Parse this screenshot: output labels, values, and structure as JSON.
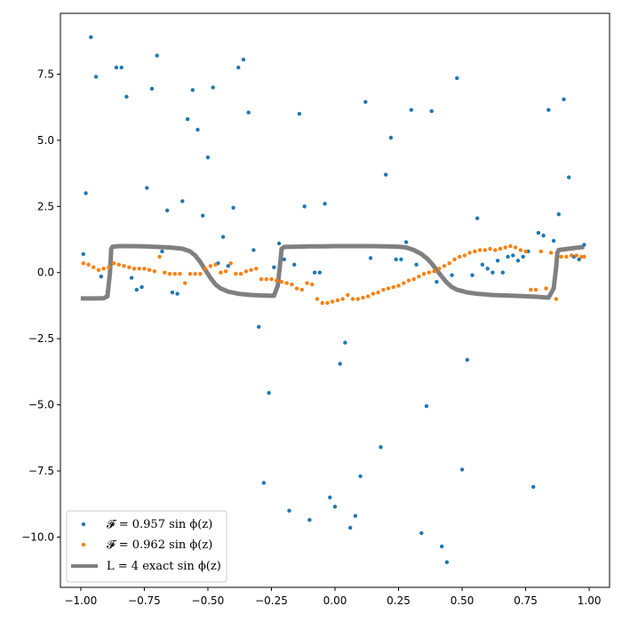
{
  "chart_data": {
    "type": "scatter",
    "title": "",
    "xlabel": "",
    "ylabel": "",
    "xlim": [
      -1.08,
      1.08
    ],
    "ylim": [
      -11.9,
      9.8
    ],
    "grid": false,
    "legend_position": "bottom-left",
    "x_ticks": [
      -1.0,
      -0.75,
      -0.5,
      -0.25,
      0.0,
      0.25,
      0.5,
      0.75,
      1.0
    ],
    "x_tick_labels": [
      "−1.00",
      "−0.75",
      "−0.50",
      "−0.25",
      "0.00",
      "0.25",
      "0.50",
      "0.75",
      "1.00"
    ],
    "y_ticks": [
      7.5,
      5.0,
      2.5,
      0.0,
      -2.5,
      -5.0,
      -7.5,
      -10.0
    ],
    "y_tick_labels": [
      "7.5",
      "5.0",
      "2.5",
      "0.0",
      "−2.5",
      "−5.0",
      "−7.5",
      "−10.0"
    ],
    "series": [
      {
        "name": "𝓕 = 0.957 sin ϕ(z)",
        "kind": "scatter",
        "color": "#1f77b4",
        "points": [
          [
            -0.99,
            0.7
          ],
          [
            -0.98,
            3.0
          ],
          [
            -0.96,
            8.9
          ],
          [
            -0.94,
            7.4
          ],
          [
            -0.92,
            -0.15
          ],
          [
            -0.86,
            7.75
          ],
          [
            -0.84,
            7.75
          ],
          [
            -0.82,
            6.65
          ],
          [
            -0.8,
            -0.2
          ],
          [
            -0.78,
            -0.65
          ],
          [
            -0.76,
            -0.55
          ],
          [
            -0.74,
            3.2
          ],
          [
            -0.72,
            6.95
          ],
          [
            -0.7,
            8.2
          ],
          [
            -0.68,
            0.8
          ],
          [
            -0.66,
            2.35
          ],
          [
            -0.64,
            -0.75
          ],
          [
            -0.62,
            -0.8
          ],
          [
            -0.6,
            2.7
          ],
          [
            -0.58,
            5.8
          ],
          [
            -0.56,
            6.9
          ],
          [
            -0.54,
            5.4
          ],
          [
            -0.52,
            2.15
          ],
          [
            -0.5,
            4.35
          ],
          [
            -0.48,
            7.0
          ],
          [
            -0.46,
            0.35
          ],
          [
            -0.44,
            1.35
          ],
          [
            -0.42,
            0.25
          ],
          [
            -0.4,
            2.45
          ],
          [
            -0.38,
            7.75
          ],
          [
            -0.36,
            8.05
          ],
          [
            -0.34,
            6.05
          ],
          [
            -0.32,
            0.85
          ],
          [
            -0.3,
            -2.05
          ],
          [
            -0.28,
            -7.95
          ],
          [
            -0.26,
            -4.55
          ],
          [
            -0.24,
            0.2
          ],
          [
            -0.22,
            1.1
          ],
          [
            -0.2,
            0.5
          ],
          [
            -0.18,
            -9.0
          ],
          [
            -0.16,
            0.3
          ],
          [
            -0.14,
            6.0
          ],
          [
            -0.12,
            2.5
          ],
          [
            -0.1,
            -9.35
          ],
          [
            -0.08,
            0.0
          ],
          [
            -0.06,
            0.0
          ],
          [
            -0.04,
            2.6
          ],
          [
            -0.02,
            -8.5
          ],
          [
            0.0,
            -8.85
          ],
          [
            0.02,
            -3.45
          ],
          [
            0.04,
            -2.65
          ],
          [
            0.06,
            -9.65
          ],
          [
            0.08,
            -9.2
          ],
          [
            0.1,
            -7.7
          ],
          [
            0.12,
            6.45
          ],
          [
            0.14,
            0.55
          ],
          [
            0.18,
            -6.6
          ],
          [
            0.2,
            3.7
          ],
          [
            0.22,
            5.1
          ],
          [
            0.24,
            0.5
          ],
          [
            0.26,
            0.5
          ],
          [
            0.28,
            1.15
          ],
          [
            0.3,
            6.15
          ],
          [
            0.32,
            0.3
          ],
          [
            0.34,
            -9.85
          ],
          [
            0.36,
            -5.05
          ],
          [
            0.38,
            6.1
          ],
          [
            0.4,
            -0.35
          ],
          [
            0.42,
            -10.35
          ],
          [
            0.44,
            -10.95
          ],
          [
            0.46,
            -0.1
          ],
          [
            0.48,
            7.35
          ],
          [
            0.5,
            -7.45
          ],
          [
            0.52,
            -3.3
          ],
          [
            0.54,
            -0.1
          ],
          [
            0.56,
            2.05
          ],
          [
            0.58,
            0.3
          ],
          [
            0.6,
            0.15
          ],
          [
            0.62,
            0.0
          ],
          [
            0.64,
            0.45
          ],
          [
            0.66,
            0.0
          ],
          [
            0.68,
            0.6
          ],
          [
            0.7,
            0.65
          ],
          [
            0.72,
            0.45
          ],
          [
            0.74,
            0.6
          ],
          [
            0.76,
            0.8
          ],
          [
            0.78,
            -8.1
          ],
          [
            0.8,
            1.5
          ],
          [
            0.82,
            1.4
          ],
          [
            0.84,
            6.15
          ],
          [
            0.86,
            1.2
          ],
          [
            0.88,
            2.2
          ],
          [
            0.9,
            6.55
          ],
          [
            0.92,
            3.6
          ],
          [
            0.94,
            0.6
          ],
          [
            0.96,
            0.5
          ],
          [
            0.98,
            1.05
          ]
        ]
      },
      {
        "name": "𝓕 = 0.962 sin ϕ(z)",
        "kind": "scatter",
        "color": "#ff7f0e",
        "points": [
          [
            -0.99,
            0.35
          ],
          [
            -0.97,
            0.3
          ],
          [
            -0.95,
            0.2
          ],
          [
            -0.93,
            0.1
          ],
          [
            -0.91,
            0.15
          ],
          [
            -0.89,
            0.2
          ],
          [
            -0.87,
            0.35
          ],
          [
            -0.85,
            0.3
          ],
          [
            -0.83,
            0.25
          ],
          [
            -0.81,
            0.2
          ],
          [
            -0.79,
            0.15
          ],
          [
            -0.77,
            0.15
          ],
          [
            -0.75,
            0.15
          ],
          [
            -0.73,
            0.1
          ],
          [
            -0.71,
            0.05
          ],
          [
            -0.69,
            0.6
          ],
          [
            -0.67,
            0.0
          ],
          [
            -0.65,
            -0.05
          ],
          [
            -0.63,
            -0.05
          ],
          [
            -0.61,
            -0.05
          ],
          [
            -0.59,
            -0.4
          ],
          [
            -0.57,
            -0.05
          ],
          [
            -0.55,
            -0.05
          ],
          [
            -0.53,
            -0.05
          ],
          [
            -0.51,
            0.15
          ],
          [
            -0.49,
            0.25
          ],
          [
            -0.47,
            0.3
          ],
          [
            -0.45,
            0.0
          ],
          [
            -0.43,
            0.05
          ],
          [
            -0.41,
            0.35
          ],
          [
            -0.39,
            -0.05
          ],
          [
            -0.37,
            -0.05
          ],
          [
            -0.35,
            0.05
          ],
          [
            -0.33,
            0.1
          ],
          [
            -0.31,
            0.15
          ],
          [
            -0.29,
            -0.25
          ],
          [
            -0.27,
            -0.25
          ],
          [
            -0.25,
            -0.25
          ],
          [
            -0.23,
            -0.3
          ],
          [
            -0.21,
            -0.35
          ],
          [
            -0.19,
            -0.4
          ],
          [
            -0.17,
            -0.45
          ],
          [
            -0.15,
            -0.6
          ],
          [
            -0.13,
            -0.65
          ],
          [
            -0.11,
            -0.4
          ],
          [
            -0.09,
            -0.45
          ],
          [
            -0.07,
            -1.0
          ],
          [
            -0.05,
            -1.15
          ],
          [
            -0.03,
            -1.15
          ],
          [
            -0.01,
            -1.1
          ],
          [
            0.01,
            -1.05
          ],
          [
            0.03,
            -1.0
          ],
          [
            0.05,
            -0.85
          ],
          [
            0.07,
            -1.0
          ],
          [
            0.09,
            -1.0
          ],
          [
            0.11,
            -0.95
          ],
          [
            0.13,
            -0.9
          ],
          [
            0.15,
            -0.8
          ],
          [
            0.17,
            -0.75
          ],
          [
            0.19,
            -0.65
          ],
          [
            0.21,
            -0.6
          ],
          [
            0.23,
            -0.55
          ],
          [
            0.25,
            -0.5
          ],
          [
            0.27,
            -0.4
          ],
          [
            0.29,
            -0.3
          ],
          [
            0.31,
            -0.25
          ],
          [
            0.33,
            -0.15
          ],
          [
            0.35,
            -0.05
          ],
          [
            0.37,
            0.0
          ],
          [
            0.39,
            0.05
          ],
          [
            0.41,
            0.15
          ],
          [
            0.43,
            0.25
          ],
          [
            0.45,
            0.35
          ],
          [
            0.47,
            0.5
          ],
          [
            0.49,
            0.6
          ],
          [
            0.51,
            0.65
          ],
          [
            0.53,
            0.75
          ],
          [
            0.55,
            0.8
          ],
          [
            0.57,
            0.85
          ],
          [
            0.59,
            0.85
          ],
          [
            0.61,
            0.9
          ],
          [
            0.63,
            0.85
          ],
          [
            0.65,
            0.9
          ],
          [
            0.67,
            0.95
          ],
          [
            0.69,
            1.0
          ],
          [
            0.71,
            0.95
          ],
          [
            0.73,
            0.85
          ],
          [
            0.75,
            0.8
          ],
          [
            0.77,
            -0.65
          ],
          [
            0.79,
            -0.65
          ],
          [
            0.81,
            0.8
          ],
          [
            0.83,
            -0.6
          ],
          [
            0.85,
            0.75
          ],
          [
            0.87,
            -1.0
          ],
          [
            0.89,
            0.6
          ],
          [
            0.91,
            0.6
          ],
          [
            0.93,
            0.65
          ],
          [
            0.95,
            0.65
          ],
          [
            0.97,
            0.6
          ],
          [
            0.98,
            0.6
          ]
        ]
      },
      {
        "name": "L = 4 exact sin ϕ(z)",
        "kind": "line",
        "color": "#808080",
        "points": [
          [
            -1.0,
            -0.98
          ],
          [
            -0.95,
            -0.98
          ],
          [
            -0.91,
            -0.97
          ],
          [
            -0.895,
            -0.9
          ],
          [
            -0.885,
            0.0
          ],
          [
            -0.88,
            0.9
          ],
          [
            -0.875,
            0.98
          ],
          [
            -0.85,
            1.0
          ],
          [
            -0.8,
            1.0
          ],
          [
            -0.75,
            0.99
          ],
          [
            -0.7,
            0.97
          ],
          [
            -0.65,
            0.95
          ],
          [
            -0.6,
            0.9
          ],
          [
            -0.57,
            0.8
          ],
          [
            -0.55,
            0.65
          ],
          [
            -0.53,
            0.4
          ],
          [
            -0.51,
            0.1
          ],
          [
            -0.49,
            -0.2
          ],
          [
            -0.47,
            -0.45
          ],
          [
            -0.45,
            -0.6
          ],
          [
            -0.42,
            -0.72
          ],
          [
            -0.38,
            -0.8
          ],
          [
            -0.33,
            -0.85
          ],
          [
            -0.28,
            -0.87
          ],
          [
            -0.24,
            -0.88
          ],
          [
            -0.225,
            -0.5
          ],
          [
            -0.215,
            0.4
          ],
          [
            -0.21,
            0.9
          ],
          [
            -0.2,
            0.97
          ],
          [
            -0.15,
            0.98
          ],
          [
            -0.1,
            0.99
          ],
          [
            -0.05,
            0.99
          ],
          [
            0.0,
            1.0
          ],
          [
            0.05,
            1.0
          ],
          [
            0.1,
            1.0
          ],
          [
            0.15,
            1.0
          ],
          [
            0.2,
            0.99
          ],
          [
            0.25,
            0.98
          ],
          [
            0.28,
            0.95
          ],
          [
            0.31,
            0.85
          ],
          [
            0.34,
            0.7
          ],
          [
            0.36,
            0.55
          ],
          [
            0.38,
            0.35
          ],
          [
            0.4,
            0.1
          ],
          [
            0.42,
            -0.15
          ],
          [
            0.44,
            -0.38
          ],
          [
            0.46,
            -0.55
          ],
          [
            0.48,
            -0.65
          ],
          [
            0.52,
            -0.75
          ],
          [
            0.56,
            -0.8
          ],
          [
            0.62,
            -0.85
          ],
          [
            0.68,
            -0.87
          ],
          [
            0.74,
            -0.89
          ],
          [
            0.8,
            -0.92
          ],
          [
            0.84,
            -0.95
          ],
          [
            0.86,
            -0.6
          ],
          [
            0.87,
            0.2
          ],
          [
            0.875,
            0.75
          ],
          [
            0.88,
            0.85
          ],
          [
            0.92,
            0.9
          ],
          [
            0.96,
            0.95
          ],
          [
            0.98,
            0.97
          ]
        ]
      }
    ]
  },
  "legend": {
    "items": [
      {
        "label": "𝓕 = 0.957 sin ϕ(z)",
        "color": "#1f77b4",
        "kind": "marker"
      },
      {
        "label": "𝓕 = 0.962 sin ϕ(z)",
        "color": "#ff7f0e",
        "kind": "marker"
      },
      {
        "label": "L = 4 exact sin ϕ(z)",
        "color": "#808080",
        "kind": "line"
      }
    ]
  }
}
